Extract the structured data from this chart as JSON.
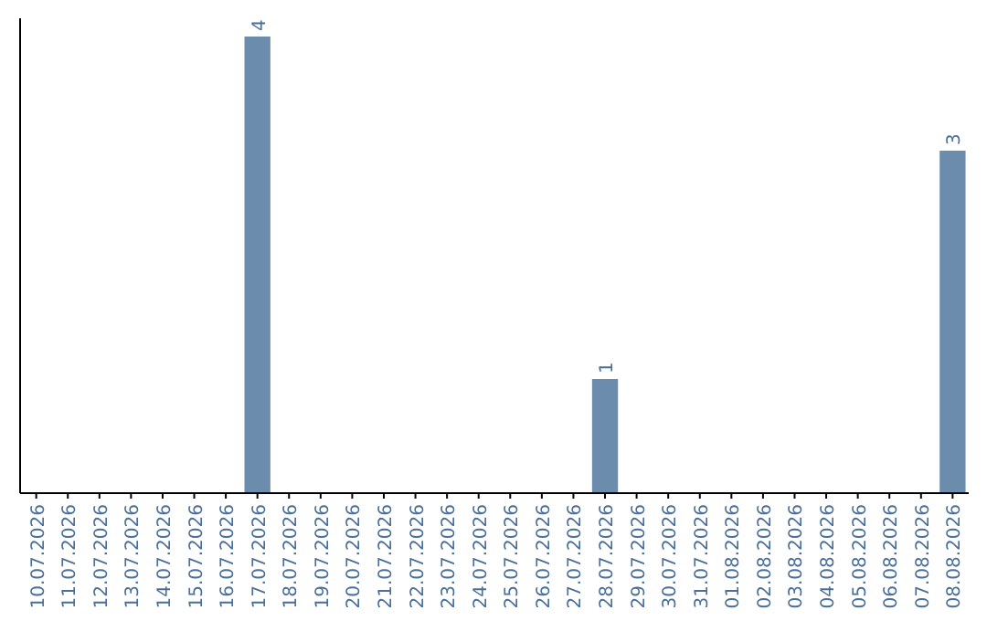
{
  "chart_data": {
    "type": "bar",
    "categories": [
      "10.07.2026",
      "11.07.2026",
      "12.07.2026",
      "13.07.2026",
      "14.07.2026",
      "15.07.2026",
      "16.07.2026",
      "17.07.2026",
      "18.07.2026",
      "19.07.2026",
      "20.07.2026",
      "21.07.2026",
      "22.07.2026",
      "23.07.2026",
      "24.07.2026",
      "25.07.2026",
      "26.07.2026",
      "27.07.2026",
      "28.07.2026",
      "29.07.2026",
      "30.07.2026",
      "31.07.2026",
      "01.08.2026",
      "02.08.2026",
      "03.08.2026",
      "04.08.2026",
      "05.08.2026",
      "06.08.2026",
      "07.08.2026",
      "08.08.2026"
    ],
    "values": [
      0,
      0,
      0,
      0,
      0,
      0,
      0,
      4,
      0,
      0,
      0,
      0,
      0,
      0,
      0,
      0,
      0,
      0,
      1,
      0,
      0,
      0,
      0,
      0,
      0,
      0,
      0,
      0,
      0,
      3
    ],
    "value_labels": [
      null,
      null,
      null,
      null,
      null,
      null,
      null,
      "4",
      null,
      null,
      null,
      null,
      null,
      null,
      null,
      null,
      null,
      null,
      "1",
      null,
      null,
      null,
      null,
      null,
      null,
      null,
      null,
      null,
      null,
      "3"
    ],
    "color": "#6b8cad",
    "tick_labels": "x"
  }
}
